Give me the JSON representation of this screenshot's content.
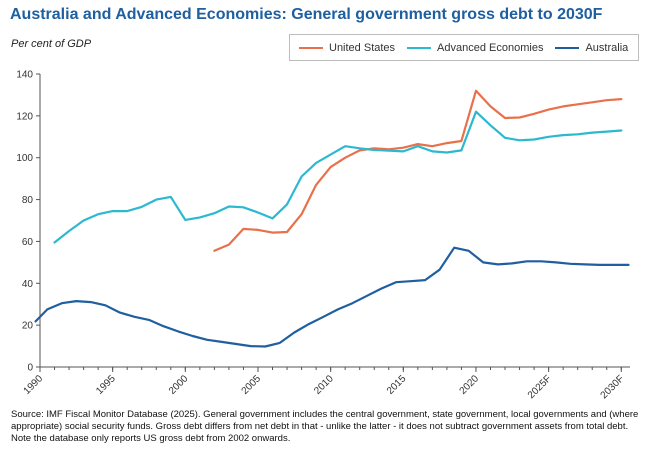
{
  "title": "Australia and Advanced Economies: General government gross debt to 2030F",
  "unit_label": "Per cent of GDP",
  "source": "Source: IMF Fiscal Monitor Database (2025). General government includes the central government, state government, local governments and (where appropriate) social security funds. Gross debt differs from net debt in that - unlike the latter - it does not subtract government assets from total debt. Note the database only reports US gross debt from 2002 onwards.",
  "chart_data": {
    "type": "line",
    "title": "Australia and Advanced Economies: General government gross debt to 2030F",
    "ylabel": "Per cent of GDP",
    "xlabel": "",
    "xlim": [
      1990,
      2030.6
    ],
    "ylim": [
      0,
      140
    ],
    "yticks": [
      0,
      20,
      40,
      60,
      80,
      100,
      120,
      140
    ],
    "xticks": [
      {
        "value": 1990,
        "label": "1990"
      },
      {
        "value": 1995,
        "label": "1995"
      },
      {
        "value": 2000,
        "label": "2000"
      },
      {
        "value": 2005,
        "label": "2005"
      },
      {
        "value": 2010,
        "label": "2010"
      },
      {
        "value": 2015,
        "label": "2015"
      },
      {
        "value": 2020,
        "label": "2020"
      },
      {
        "value": 2025,
        "label": "2025F"
      },
      {
        "value": 2030,
        "label": "2030F"
      }
    ],
    "legend_position": "top-right",
    "series": [
      {
        "name": "United States",
        "color": "#e8714b",
        "x": [
          2002,
          2003,
          2004,
          2005,
          2006,
          2007,
          2008,
          2009,
          2010,
          2011,
          2012,
          2013,
          2014,
          2015,
          2016,
          2017,
          2018,
          2019,
          2020,
          2021,
          2022,
          2023,
          2024,
          2025,
          2026,
          2027,
          2028,
          2029,
          2030
        ],
        "values": [
          55.5,
          58.5,
          66,
          65.5,
          64.2,
          64.5,
          73,
          87,
          95.5,
          100,
          103.5,
          104.5,
          104,
          104.8,
          106.5,
          105.5,
          107,
          108,
          132,
          124.5,
          119,
          119.2,
          121,
          123,
          124.5,
          125.5,
          126.5,
          127.5,
          128
        ]
      },
      {
        "name": "Advanced Economies",
        "color": "#2cb9cf",
        "x": [
          1991,
          1992,
          1993,
          1994,
          1995,
          1996,
          1997,
          1998,
          1999,
          2000,
          2001,
          2002,
          2003,
          2004,
          2005,
          2006,
          2007,
          2008,
          2009,
          2010,
          2011,
          2012,
          2013,
          2014,
          2015,
          2016,
          2017,
          2018,
          2019,
          2020,
          2021,
          2022,
          2023,
          2024,
          2025,
          2026,
          2027,
          2028,
          2029,
          2030
        ],
        "values": [
          59.5,
          65,
          70,
          73,
          74.5,
          74.5,
          76.5,
          80,
          81.3,
          70.3,
          71.5,
          73.5,
          76.7,
          76.3,
          73.8,
          71,
          77.7,
          91,
          97.5,
          101.5,
          105.5,
          104.5,
          103.7,
          103.4,
          103,
          105.5,
          103,
          102.5,
          103.5,
          122,
          115.5,
          109.5,
          108.3,
          108.7,
          110,
          110.8,
          111.2,
          112,
          112.5,
          113
        ]
      },
      {
        "name": "Australia",
        "color": "#1f5fa0",
        "x": [
          1989.7,
          1990.5,
          1991.5,
          1992.5,
          1993.5,
          1994.5,
          1995.5,
          1996.5,
          1997.5,
          1998.5,
          1999.5,
          2000.5,
          2001.5,
          2002.5,
          2003.5,
          2004.5,
          2005.5,
          2006.5,
          2007.5,
          2008.5,
          2009.5,
          2010.5,
          2011.5,
          2012.5,
          2013.5,
          2014.5,
          2015.5,
          2016.5,
          2017.5,
          2018.5,
          2019.5,
          2020.5,
          2021.5,
          2022.5,
          2023.5,
          2024.5,
          2025.5,
          2026.5,
          2027.5,
          2028.5,
          2029.5,
          2030.5
        ],
        "values": [
          21.8,
          27.5,
          30.5,
          31.5,
          31,
          29.5,
          26,
          24,
          22.5,
          19.5,
          17,
          14.8,
          13,
          12,
          11,
          10,
          9.8,
          11.5,
          16.5,
          20.5,
          24,
          27.5,
          30.5,
          34,
          37.5,
          40.5,
          41,
          41.5,
          46.5,
          57,
          55.5,
          50,
          49,
          49.5,
          50.5,
          50.5,
          50,
          49.3,
          49,
          48.8,
          48.8,
          48.8
        ]
      }
    ]
  }
}
